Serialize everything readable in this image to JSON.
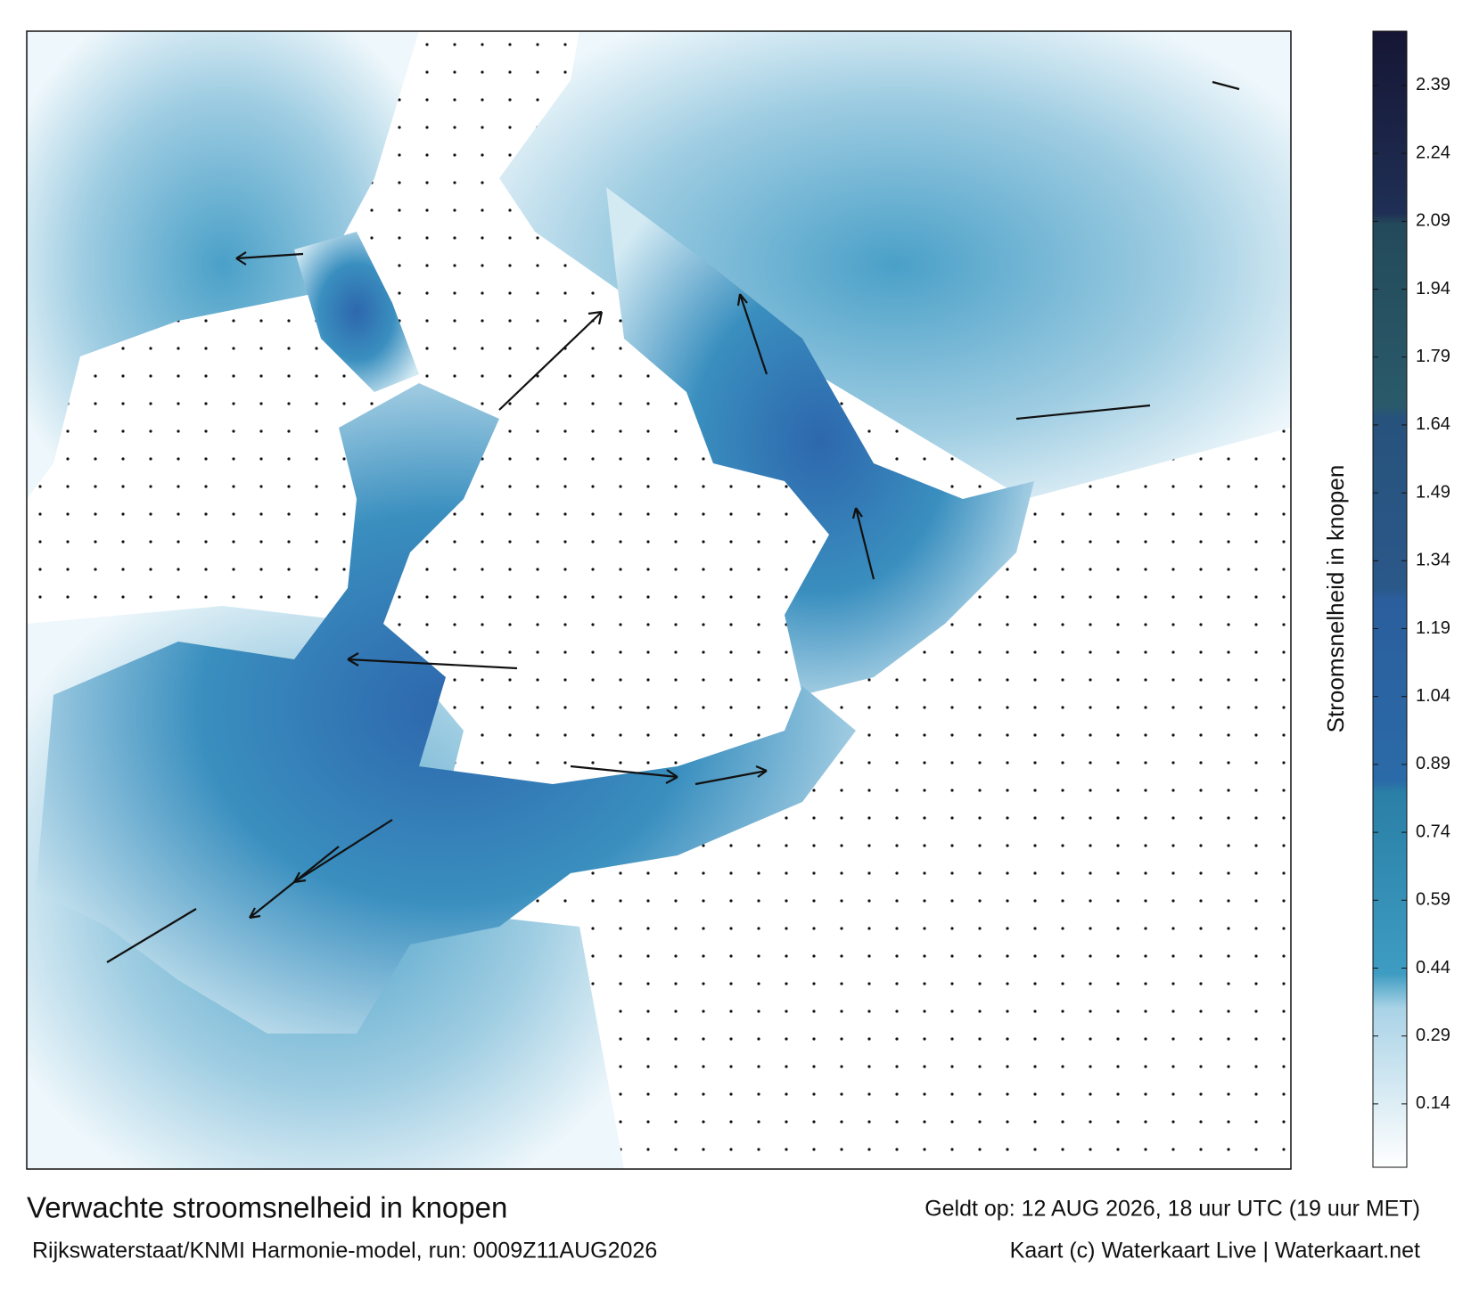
{
  "map": {
    "title": "Verwachte stroomsnelheid in knopen",
    "valid": "Geldt op: 12 AUG 2026, 18 uur UTC (19 uur MET)",
    "source": "Rijkswaterstaat/KNMI Harmonie-model, run: 0009Z11AUG2026",
    "credit": "Kaart (c) Waterkaart Live | Waterkaart.net"
  },
  "colorbar": {
    "label": "Stroomsnelheid in knopen",
    "range": [
      0,
      2.51
    ],
    "ticks": [
      0.14,
      0.29,
      0.44,
      0.59,
      0.74,
      0.89,
      1.04,
      1.19,
      1.34,
      1.49,
      1.64,
      1.79,
      1.94,
      2.09,
      2.24,
      2.39
    ]
  }
}
